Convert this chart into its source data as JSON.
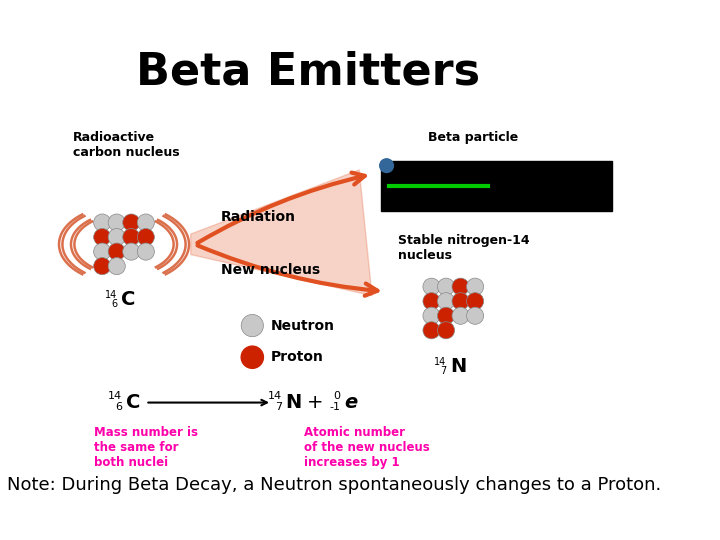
{
  "title": "Beta Emitters",
  "title_fontsize": 32,
  "title_fontweight": "bold",
  "bg_color": "#ffffff",
  "note_text": "Note: During Beta Decay, a Neutron spontaneously changes to a Proton.",
  "note_fontsize": 13,
  "labels": {
    "radioactive_carbon": "Radioactive\ncarbon nucleus",
    "beta_particle": "Beta particle",
    "radiation": "Radiation",
    "new_nucleus": "New nucleus",
    "stable_nitrogen": "Stable nitrogen-14\nnucleus",
    "neutron": "Neutron",
    "proton": "Proton"
  },
  "magenta_text1": "Mass number is\nthe same for\nboth nuclei",
  "magenta_text2": "Atomic number\nof the new nucleus\nincreases by 1",
  "magenta_color": "#ff00aa",
  "black_box_color": "#000000",
  "green_line_color": "#00cc00",
  "arrow_color": "#e05020",
  "carbon_proton_color": "#cc2200",
  "carbon_neutron_color": "#c8c8c8",
  "nitrogen_proton_color": "#cc2200",
  "nitrogen_neutron_color": "#c8c8c8",
  "beta_particle_color": "#336699"
}
